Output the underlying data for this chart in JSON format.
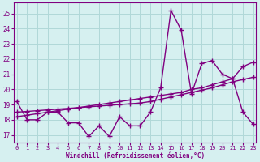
{
  "xlabel": "Windchill (Refroidissement éolien,°C)",
  "bg_color": "#d6f0f0",
  "line_color": "#800080",
  "grid_color": "#b0d8d8",
  "x_ticks": [
    0,
    1,
    2,
    3,
    4,
    5,
    6,
    7,
    8,
    9,
    10,
    11,
    12,
    13,
    14,
    15,
    16,
    17,
    18,
    19,
    20,
    21,
    22,
    23
  ],
  "y_ticks": [
    17,
    18,
    19,
    20,
    21,
    22,
    23,
    24,
    25
  ],
  "xlim": [
    -0.3,
    23.3
  ],
  "ylim": [
    16.5,
    25.7
  ],
  "line1_x": [
    0,
    1,
    2,
    3,
    4,
    5,
    6,
    7,
    8,
    9,
    10,
    11,
    12,
    13,
    14,
    15,
    16,
    17,
    18,
    19,
    20,
    21,
    22,
    23
  ],
  "line1_y": [
    19.2,
    18.0,
    18.0,
    18.5,
    18.5,
    17.8,
    17.8,
    16.9,
    17.6,
    16.9,
    18.2,
    17.6,
    17.6,
    18.5,
    20.1,
    25.2,
    23.9,
    19.7,
    21.7,
    21.9,
    21.0,
    20.7,
    18.5,
    17.7
  ],
  "line2_x": [
    0,
    1,
    2,
    3,
    4,
    5,
    6,
    7,
    8,
    9,
    10,
    11,
    12,
    13,
    14,
    15,
    16,
    17,
    18,
    19,
    20,
    21,
    22,
    23
  ],
  "line2_y": [
    18.2,
    18.3,
    18.4,
    18.5,
    18.6,
    18.7,
    18.8,
    18.9,
    19.0,
    19.1,
    19.2,
    19.3,
    19.4,
    19.5,
    19.6,
    19.7,
    19.8,
    20.0,
    20.1,
    20.3,
    20.5,
    20.7,
    21.5,
    21.8
  ],
  "line3_x": [
    0,
    1,
    2,
    3,
    4,
    5,
    6,
    7,
    8,
    9,
    10,
    11,
    12,
    13,
    14,
    15,
    16,
    17,
    18,
    19,
    20,
    21,
    22,
    23
  ],
  "line3_y": [
    18.5,
    18.55,
    18.6,
    18.65,
    18.7,
    18.75,
    18.8,
    18.85,
    18.9,
    18.95,
    19.0,
    19.05,
    19.1,
    19.2,
    19.35,
    19.5,
    19.65,
    19.8,
    19.95,
    20.1,
    20.3,
    20.5,
    20.65,
    20.8
  ],
  "marker": "+",
  "marker_size": 4,
  "line_width": 1.0
}
